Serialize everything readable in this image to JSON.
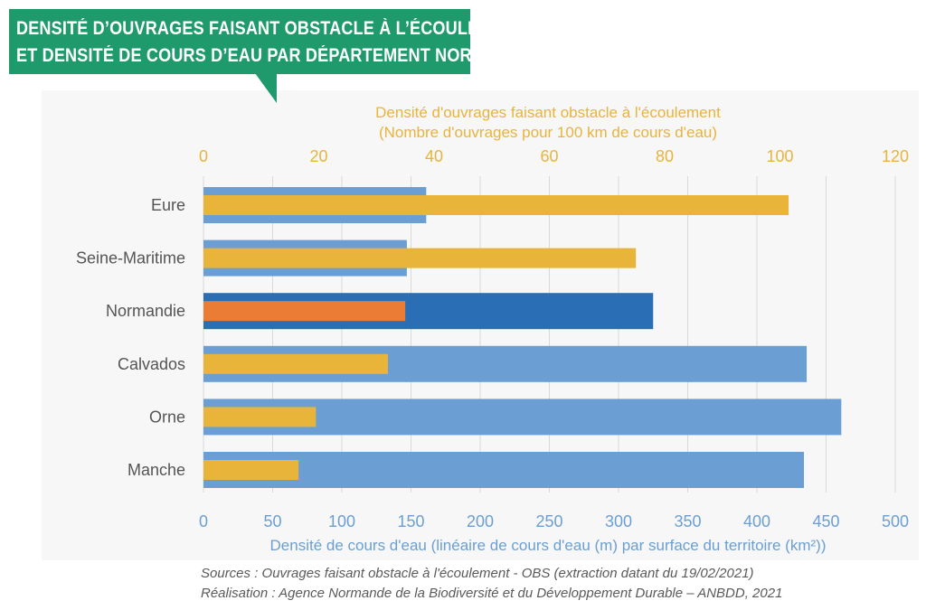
{
  "title": {
    "line1": "DENSITÉ D’OUVRAGES FAISANT OBSTACLE À L’ÉCOULEMENT",
    "line2": "ET DENSITÉ DE COURS D’EAU PAR DÉPARTEMENT NORMAND"
  },
  "chart_data": {
    "type": "bar",
    "orientation": "horizontal",
    "categories": [
      "Eure",
      "Seine-Maritime",
      "Normandie",
      "Calvados",
      "Orne",
      "Manche"
    ],
    "series": [
      {
        "axis": "bottom",
        "values": [
          161,
          147,
          325,
          436,
          461,
          434
        ]
      },
      {
        "axis": "top",
        "values": [
          101.5,
          75,
          35,
          32,
          19.5,
          16.5
        ]
      }
    ],
    "highlight_category": "Normandie",
    "colors": {
      "bottom_series": "#6b9fd3",
      "bottom_series_highlight": "#2a6fb5",
      "top_series": "#e8b43a",
      "top_series_highlight": "#ea7c36",
      "top_axis_text": "#e8b43a",
      "bottom_axis_text": "#6b9fd3",
      "category_text": "#555555",
      "grid": "#d9d9d9"
    },
    "x_bottom": {
      "label": "Densité de cours d'eau (linéaire de cours d'eau (m) par surface du territoire (km²))",
      "min": 0,
      "max": 500,
      "ticks": [
        0,
        50,
        100,
        150,
        200,
        250,
        300,
        350,
        400,
        450,
        500
      ]
    },
    "x_top": {
      "label_line1": "Densité d'ouvrages faisant obstacle à l'écoulement",
      "label_line2": "(Nombre d'ouvrages pour 100 km de cours d'eau)",
      "min": 0,
      "max": 120,
      "ticks": [
        0,
        20,
        40,
        60,
        80,
        100,
        120
      ]
    },
    "grid": true
  },
  "sources": {
    "line1": "Sources : Ouvrages faisant obstacle à l'écoulement - OBS (extraction datant du 19/02/2021)",
    "line2": "Réalisation : Agence Normande de la Biodiversité et du Développement Durable – ANBDD, 2021"
  }
}
